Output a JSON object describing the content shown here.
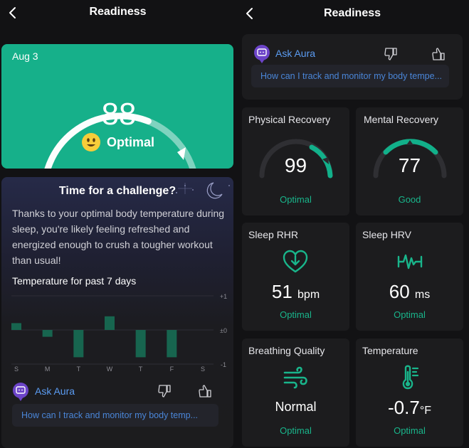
{
  "left": {
    "header": {
      "title": "Readiness"
    },
    "readiness": {
      "date": "Aug 3",
      "score": "88",
      "status": "Optimal",
      "level_fraction": 0.88
    },
    "challenge": {
      "title": "Time for a challenge?",
      "body": "Thanks to your optimal body temperature during sleep, you're likely feeling refreshed and energized enough to crush a tougher workout than usual!",
      "temp_title": "Temperature for past 7 days"
    },
    "aura": {
      "label": "Ask Aura",
      "question": "How can I track and monitor my body temp..."
    }
  },
  "right": {
    "header": {
      "title": "Readiness"
    },
    "aura": {
      "label": "Ask Aura",
      "question": "How can I track and monitor my body tempe..."
    },
    "metrics": {
      "physical": {
        "title": "Physical Recovery",
        "value": "99",
        "status": "Optimal"
      },
      "mental": {
        "title": "Mental Recovery",
        "value": "77",
        "status": "Good"
      },
      "rhr": {
        "title": "Sleep RHR",
        "value": "51",
        "unit": "bpm",
        "status": "Optimal",
        "icon": "heart-down-icon"
      },
      "hrv": {
        "title": "Sleep HRV",
        "value": "60",
        "unit": "ms",
        "status": "Optimal",
        "icon": "pulse-icon"
      },
      "breathing": {
        "title": "Breathing Quality",
        "value": "Normal",
        "status": "Optimal",
        "icon": "wind-icon"
      },
      "temperature": {
        "title": "Temperature",
        "value": "-0.7",
        "unit": "°F",
        "status": "Optimal",
        "icon": "thermometer-icon"
      }
    }
  },
  "colors": {
    "accent": "#16b08a",
    "status_green": "#19b58b",
    "link_blue": "#5b9cf2",
    "card": "#1c1c1e",
    "background": "#121214"
  },
  "chart_data": {
    "type": "bar",
    "categories": [
      "S",
      "M",
      "T",
      "W",
      "T",
      "F",
      "S"
    ],
    "values": [
      0.2,
      -0.2,
      -0.8,
      0.4,
      -0.8,
      -0.8,
      null
    ],
    "ylim": [
      -1,
      1
    ],
    "ytick_labels": [
      "+1",
      "±0",
      "-1"
    ],
    "grid": true,
    "color": "#17654f"
  }
}
